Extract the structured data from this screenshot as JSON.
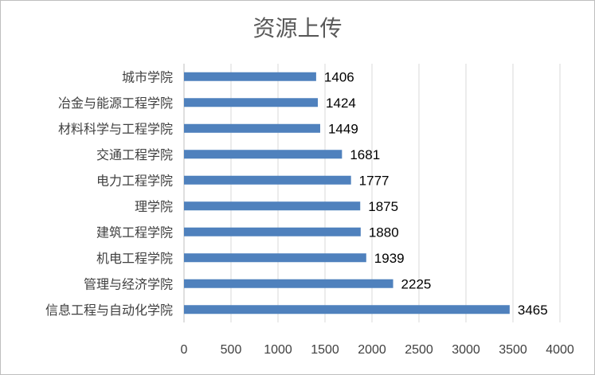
{
  "colors": {
    "bar": "#4f81bd",
    "grid": "#d9d9d9",
    "axis": "#bfbfbf"
  },
  "chart_data": {
    "type": "bar",
    "orientation": "horizontal",
    "title": "资源上传",
    "categories": [
      "城市学院",
      "冶金与能源工程学院",
      "材料科学与工程学院",
      "交通工程学院",
      "电力工程学院",
      "理学院",
      "建筑工程学院",
      "机电工程学院",
      "管理与经济学院",
      "信息工程与自动化学院"
    ],
    "values": [
      1406,
      1424,
      1449,
      1681,
      1777,
      1875,
      1880,
      1939,
      2225,
      3465
    ],
    "xlim": [
      0,
      4000
    ],
    "xticks": [
      0,
      500,
      1000,
      1500,
      2000,
      2500,
      3000,
      3500,
      4000
    ],
    "grid": true,
    "data_labels": true
  }
}
